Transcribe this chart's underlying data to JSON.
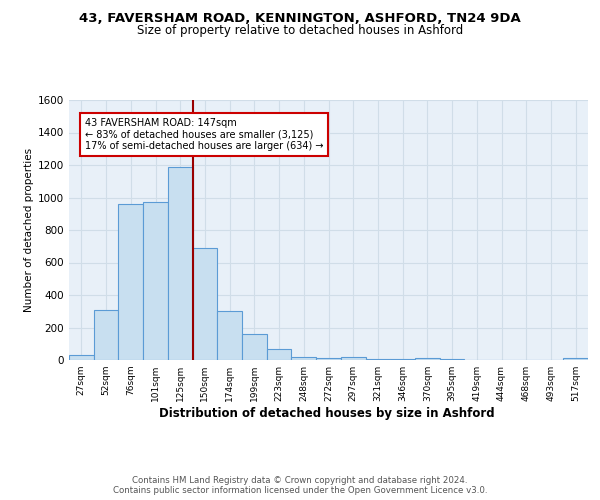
{
  "title": "43, FAVERSHAM ROAD, KENNINGTON, ASHFORD, TN24 9DA",
  "subtitle": "Size of property relative to detached houses in Ashford",
  "xlabel": "Distribution of detached houses by size in Ashford",
  "ylabel": "Number of detached properties",
  "categories": [
    "27sqm",
    "52sqm",
    "76sqm",
    "101sqm",
    "125sqm",
    "150sqm",
    "174sqm",
    "199sqm",
    "223sqm",
    "248sqm",
    "272sqm",
    "297sqm",
    "321sqm",
    "346sqm",
    "370sqm",
    "395sqm",
    "419sqm",
    "444sqm",
    "468sqm",
    "493sqm",
    "517sqm"
  ],
  "values": [
    30,
    310,
    960,
    970,
    1190,
    690,
    300,
    160,
    70,
    18,
    15,
    20,
    8,
    5,
    10,
    5,
    3,
    2,
    3,
    2,
    15
  ],
  "bar_color": "#c8dff0",
  "bar_edge_color": "#5b9bd5",
  "vline_x": 4.5,
  "vline_color": "#990000",
  "annotation_text": "43 FAVERSHAM ROAD: 147sqm\n← 83% of detached houses are smaller (3,125)\n17% of semi-detached houses are larger (634) →",
  "annotation_box_color": "#ffffff",
  "annotation_box_edge": "#cc0000",
  "footer": "Contains HM Land Registry data © Crown copyright and database right 2024.\nContains public sector information licensed under the Open Government Licence v3.0.",
  "ylim": [
    0,
    1600
  ],
  "yticks": [
    0,
    200,
    400,
    600,
    800,
    1000,
    1200,
    1400,
    1600
  ],
  "grid_color": "#d0dde8",
  "plot_bg_color": "#e8f0f8"
}
